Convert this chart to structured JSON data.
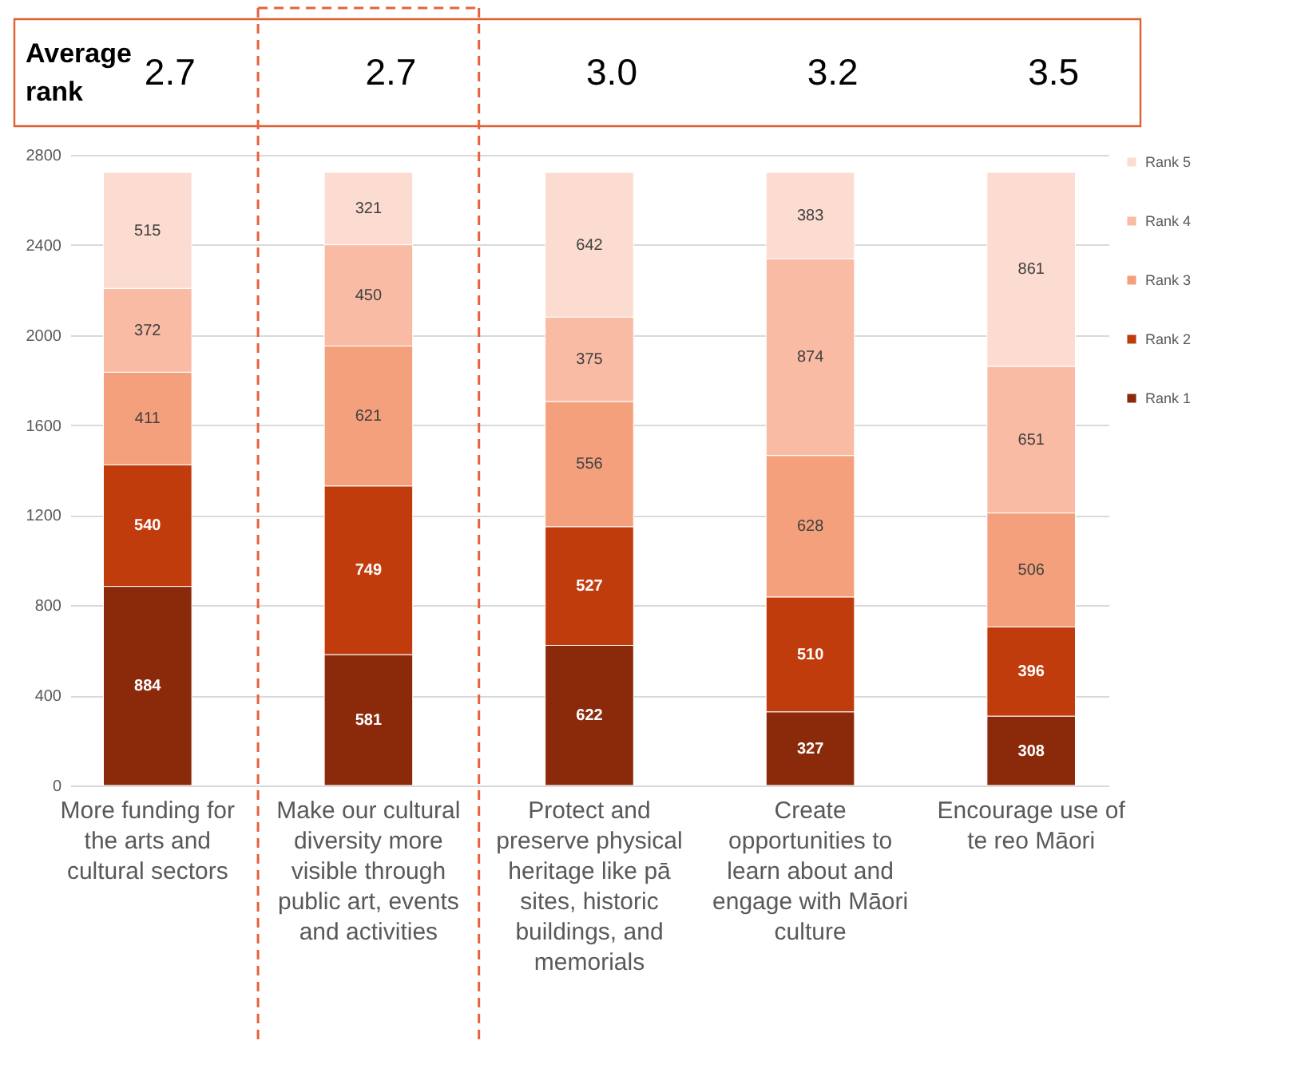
{
  "chart_data": {
    "type": "bar",
    "stacked": true,
    "categories": [
      "More funding for the arts and cultural sectors",
      "Make our cultural diversity more visible through public art, events and activities",
      "Protect and preserve physical heritage like pā sites, historic buildings, and memorials",
      "Create opportunities to learn about and engage with Māori culture",
      "Encourage use of te reo Māori"
    ],
    "series": [
      {
        "name": "Rank 1",
        "color": "#8b2a0b",
        "values": [
          884,
          581,
          622,
          327,
          308
        ]
      },
      {
        "name": "Rank 2",
        "color": "#c13c0c",
        "values": [
          540,
          749,
          527,
          510,
          396
        ]
      },
      {
        "name": "Rank 3",
        "color": "#f5a07c",
        "values": [
          411,
          621,
          556,
          628,
          506
        ]
      },
      {
        "name": "Rank 4",
        "color": "#f9bba3",
        "values": [
          372,
          450,
          375,
          874,
          651
        ]
      },
      {
        "name": "Rank 5",
        "color": "#fcdcd1",
        "values": [
          515,
          321,
          642,
          383,
          861
        ]
      }
    ],
    "ylim": [
      0,
      2800
    ],
    "yticks": [
      0,
      400,
      800,
      1200,
      1600,
      2000,
      2400,
      2800
    ],
    "grid": "y",
    "legend": "right",
    "data_labels": true,
    "annotations": [
      "Average rank",
      "2.7",
      "2.7",
      "3.0",
      "3.2",
      "3.5"
    ]
  }
}
